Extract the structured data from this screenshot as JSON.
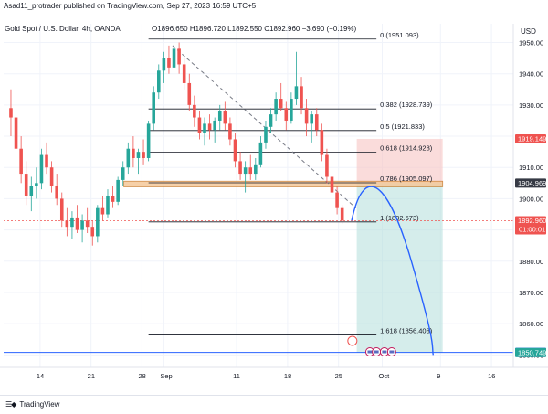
{
  "header": {
    "publisher_text": "Asad11_protrader published on TradingView.com, Sep 27, 2023 16:59 UTC+5",
    "symbol": "Gold Spot / U.S. Dollar, 4h, OANDA",
    "ohlc": "O1896.650  H1896.720  L1892.550  C1892.960  −3.690 (−0.19%)",
    "currency": "USD"
  },
  "footer": {
    "brand": "TradingView",
    "logo_icon": "tradingview-logo-icon"
  },
  "colors": {
    "up": "#26a69a",
    "down": "#ef5350",
    "projection": "#2962ff",
    "horizontal_line": "#2962ff",
    "zone": "#f5c89a",
    "trendline": "#787b86",
    "fib_line": "#131722",
    "target_box": "#b2dfdb",
    "stop_box": "#f7c5c3"
  },
  "chart_data": {
    "type": "candlestick",
    "timeframe": "4h",
    "ylim": [
      1846,
      1956
    ],
    "y_ticks": [
      1850,
      1860,
      1870,
      1880,
      1890,
      1900,
      1910,
      1920,
      1930,
      1940,
      1950
    ],
    "x_ticks": [
      {
        "label": "14",
        "day": 14
      },
      {
        "label": "21",
        "day": 21
      },
      {
        "label": "28",
        "day": 28
      },
      {
        "label": "Sep",
        "day": 31
      },
      {
        "label": "11",
        "day": 41
      },
      {
        "label": "18",
        "day": 48
      },
      {
        "label": "25",
        "day": 55
      },
      {
        "label": "Oct",
        "day": 61
      },
      {
        "label": "9",
        "day": 69
      },
      {
        "label": "16",
        "day": 76
      }
    ],
    "x_day_range": [
      9,
      79
    ],
    "candles": [
      [
        10,
        1929,
        1935,
        1920,
        1926
      ],
      [
        10.7,
        1926,
        1928,
        1914,
        1916
      ],
      [
        11.4,
        1916,
        1920,
        1905,
        1908
      ],
      [
        12.1,
        1908,
        1912,
        1898,
        1901
      ],
      [
        12.8,
        1901,
        1907,
        1896,
        1904
      ],
      [
        13.5,
        1904,
        1910,
        1900,
        1905
      ],
      [
        14.2,
        1905,
        1916,
        1903,
        1914
      ],
      [
        14.9,
        1914,
        1918,
        1908,
        1910
      ],
      [
        15.6,
        1910,
        1912,
        1902,
        1904
      ],
      [
        16.3,
        1904,
        1908,
        1898,
        1900
      ],
      [
        17,
        1900,
        1902,
        1891,
        1893
      ],
      [
        17.7,
        1893,
        1897,
        1888,
        1891
      ],
      [
        18.4,
        1891,
        1896,
        1887,
        1894
      ],
      [
        19.1,
        1894,
        1898,
        1889,
        1890
      ],
      [
        19.8,
        1890,
        1895,
        1886,
        1893
      ],
      [
        20.5,
        1893,
        1897,
        1889,
        1891
      ],
      [
        21.2,
        1891,
        1893,
        1885,
        1888
      ],
      [
        21.9,
        1888,
        1898,
        1886,
        1897
      ],
      [
        22.6,
        1897,
        1901,
        1893,
        1895
      ],
      [
        23.3,
        1895,
        1903,
        1894,
        1901
      ],
      [
        24,
        1901,
        1904,
        1897,
        1899
      ],
      [
        24.7,
        1899,
        1907,
        1898,
        1906
      ],
      [
        25.4,
        1906,
        1912,
        1904,
        1910
      ],
      [
        26.1,
        1910,
        1918,
        1908,
        1916
      ],
      [
        26.8,
        1916,
        1920,
        1910,
        1913
      ],
      [
        27.5,
        1913,
        1916,
        1908,
        1915
      ],
      [
        28.2,
        1915,
        1919,
        1911,
        1913
      ],
      [
        28.9,
        1913,
        1925,
        1912,
        1924
      ],
      [
        29.6,
        1924,
        1936,
        1922,
        1934
      ],
      [
        30.3,
        1934,
        1943,
        1932,
        1941
      ],
      [
        31,
        1941,
        1947,
        1937,
        1945
      ],
      [
        31.7,
        1945,
        1949,
        1940,
        1942
      ],
      [
        32.4,
        1942,
        1953,
        1941,
        1948
      ],
      [
        33.1,
        1948,
        1950,
        1940,
        1943
      ],
      [
        33.8,
        1943,
        1945,
        1935,
        1937
      ],
      [
        34.5,
        1937,
        1940,
        1928,
        1930
      ],
      [
        35.2,
        1930,
        1933,
        1923,
        1926
      ],
      [
        35.9,
        1926,
        1928,
        1919,
        1921
      ],
      [
        36.6,
        1921,
        1926,
        1917,
        1924
      ],
      [
        37.3,
        1924,
        1927,
        1919,
        1922
      ],
      [
        38,
        1922,
        1926,
        1918,
        1925
      ],
      [
        38.7,
        1925,
        1930,
        1922,
        1928
      ],
      [
        39.4,
        1928,
        1931,
        1922,
        1924
      ],
      [
        40.1,
        1924,
        1926,
        1917,
        1919
      ],
      [
        40.8,
        1919,
        1921,
        1910,
        1912
      ],
      [
        41.5,
        1912,
        1915,
        1906,
        1908
      ],
      [
        42.2,
        1908,
        1912,
        1902,
        1910
      ],
      [
        42.9,
        1910,
        1914,
        1906,
        1908
      ],
      [
        43.6,
        1908,
        1913,
        1906,
        1911
      ],
      [
        44.3,
        1911,
        1920,
        1910,
        1918
      ],
      [
        45,
        1918,
        1925,
        1916,
        1923
      ],
      [
        45.7,
        1923,
        1929,
        1921,
        1927
      ],
      [
        46.4,
        1927,
        1934,
        1925,
        1932
      ],
      [
        47.1,
        1932,
        1937,
        1928,
        1929
      ],
      [
        47.8,
        1929,
        1931,
        1922,
        1925
      ],
      [
        48.5,
        1925,
        1934,
        1924,
        1932
      ],
      [
        49.2,
        1932,
        1947,
        1930,
        1936
      ],
      [
        49.9,
        1936,
        1939,
        1927,
        1929
      ],
      [
        50.6,
        1929,
        1932,
        1920,
        1924
      ],
      [
        51.3,
        1924,
        1928,
        1918,
        1927
      ],
      [
        52,
        1927,
        1929,
        1920,
        1922
      ],
      [
        52.7,
        1922,
        1924,
        1912,
        1914
      ],
      [
        53.4,
        1914,
        1916,
        1905,
        1907
      ],
      [
        54.1,
        1907,
        1909,
        1899,
        1902
      ],
      [
        54.8,
        1902,
        1904,
        1895,
        1897
      ],
      [
        55.5,
        1897,
        1898,
        1892,
        1893
      ]
    ],
    "fib_levels": [
      {
        "ratio": "0",
        "price": 1951.093,
        "label": "0 (1951.093)"
      },
      {
        "ratio": "0.382",
        "price": 1928.739,
        "label": "0.382 (1928.739)"
      },
      {
        "ratio": "0.5",
        "price": 1921.833,
        "label": "0.5 (1921.833)"
      },
      {
        "ratio": "0.618",
        "price": 1914.928,
        "label": "0.618 (1914.928)"
      },
      {
        "ratio": "0.786",
        "price": 1905.097,
        "label": "0.786 (1905.097)"
      },
      {
        "ratio": "1",
        "price": 1892.573,
        "label": "1 (1892.573)"
      },
      {
        "ratio": "1.618",
        "price": 1856.408,
        "label": "1.618 (1856.408)"
      }
    ],
    "resistance_zone": [
      1903.8,
      1905.6
    ],
    "support_line": 1850.806,
    "trendline": [
      [
        32.2,
        1949
      ],
      [
        57.4,
        1897
      ]
    ],
    "projection_path": [
      [
        56.8,
        1893
      ],
      [
        58.3,
        1905.5
      ],
      [
        61.4,
        1900
      ],
      [
        65,
        1880
      ],
      [
        68,
        1850
      ]
    ],
    "position_box": {
      "day_start": 57.5,
      "day_end": 69.3,
      "entry": 1905.1,
      "stop": 1919.149,
      "target": 1850.749
    },
    "price_tags": [
      {
        "value": "1919.149",
        "price": 1919.149,
        "bg": "#ef5350"
      },
      {
        "value": "1904.969",
        "price": 1904.969,
        "bg": "#363a45"
      },
      {
        "value": "1892.960",
        "sub": "01:00:01",
        "price": 1892.96,
        "bg": "#ef5350"
      },
      {
        "value": "1850.806",
        "price": 1850.806,
        "bg": "#2962ff"
      },
      {
        "value": "1850.749",
        "price": 1850.749,
        "bg": "#26a69a"
      }
    ],
    "event_markers": [
      {
        "day": 56.9,
        "kind": "earnings"
      },
      {
        "day": 59.3,
        "kind": "flag"
      },
      {
        "day": 60.2,
        "kind": "flag"
      },
      {
        "day": 61.3,
        "kind": "flag"
      },
      {
        "day": 62.3,
        "kind": "flag"
      }
    ]
  }
}
